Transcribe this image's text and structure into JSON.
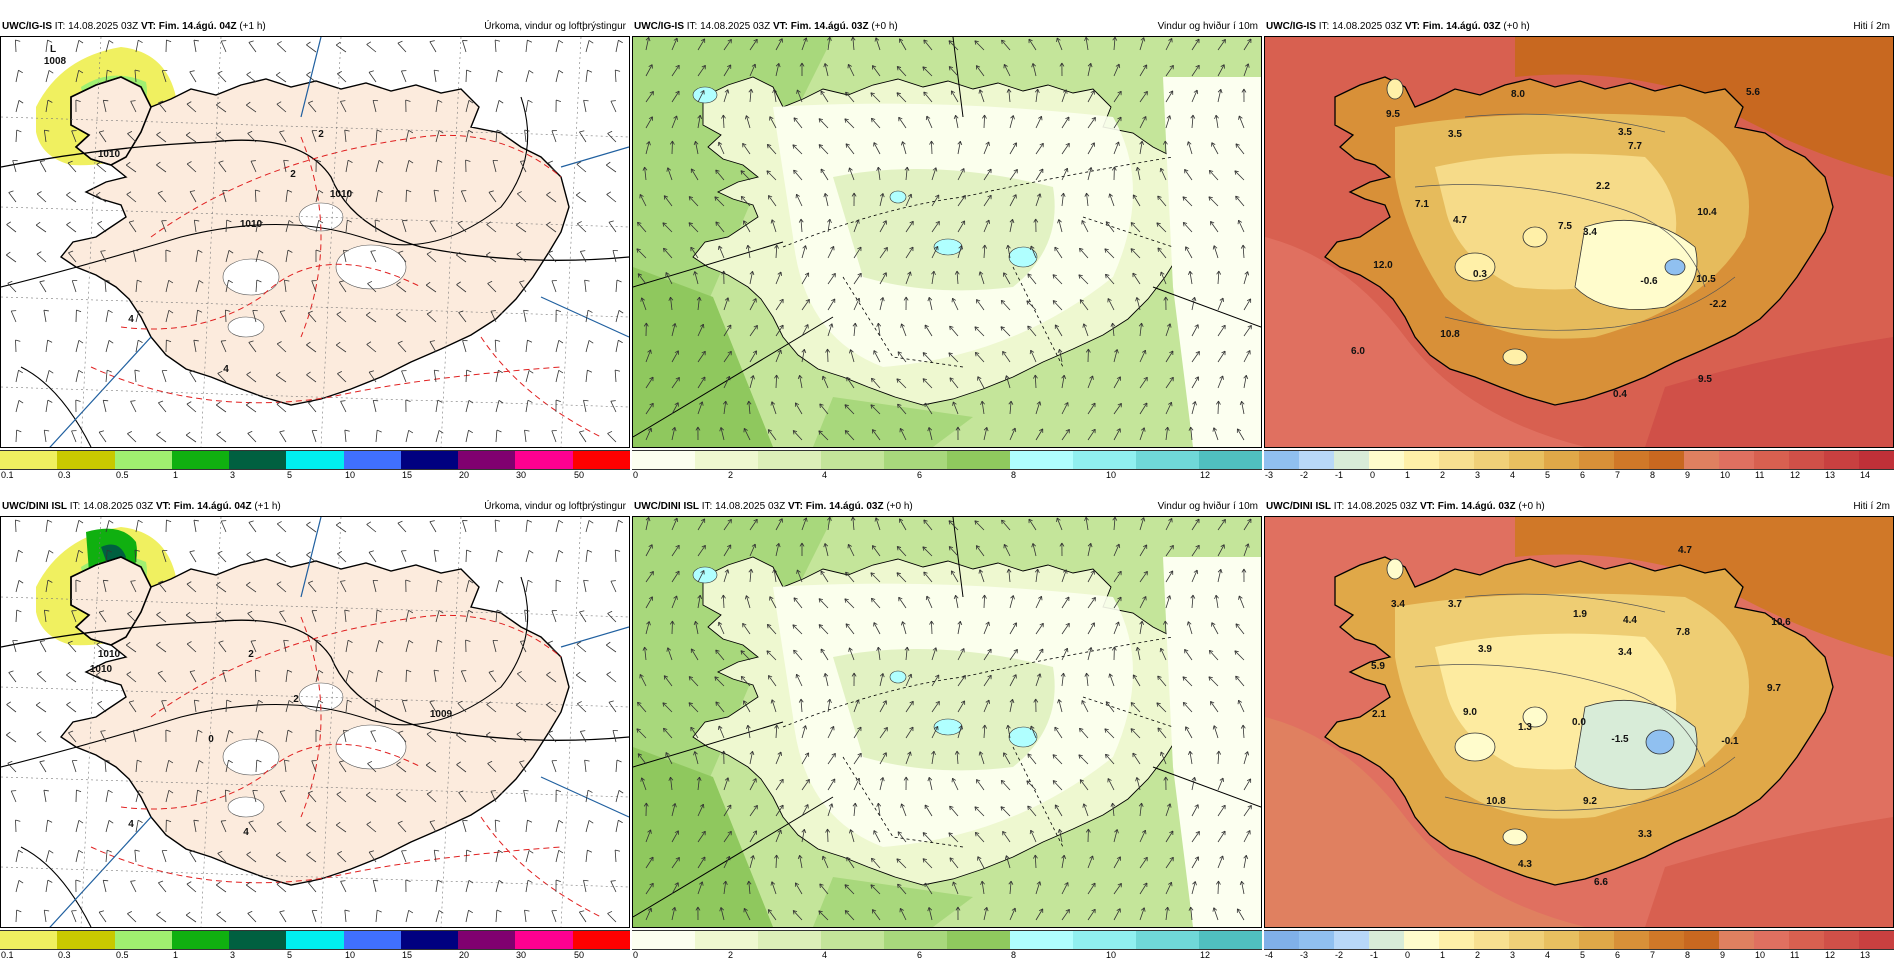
{
  "panels": [
    {
      "id": "igis-precip",
      "model": "UWC/IG-IS",
      "it_label": "IT:",
      "it": "14.08.2025 03Z",
      "vt_label": "VT:",
      "vt": "Fim. 14.ágú. 04Z",
      "lead": "(+1 h)",
      "title": "Úrkoma, vindur og loftþrýstingur",
      "kind": "precip",
      "colorbar": {
        "colors": [
          "#f0f060",
          "#c8c800",
          "#a0f070",
          "#10b010",
          "#006040",
          "#00f0f0",
          "#4070ff",
          "#000080",
          "#800070",
          "#ff0090",
          "#ff0000"
        ],
        "labels": [
          "0.1",
          "0.3",
          "0.5",
          "1",
          "3",
          "5",
          "10",
          "15",
          "20",
          "30",
          "50"
        ]
      },
      "labels": [
        "L",
        "1008",
        "1010",
        "1010",
        "1010",
        "2",
        "2",
        "4",
        "4"
      ]
    },
    {
      "id": "igis-wind",
      "model": "UWC/IG-IS",
      "it_label": "IT:",
      "it": "14.08.2025 03Z",
      "vt_label": "VT:",
      "vt": "Fim. 14.ágú. 03Z",
      "lead": "(+0 h)",
      "title": "Vindur og hviður í 10m",
      "kind": "wind",
      "colorbar": {
        "colors": [
          "#fcfff0",
          "#eef8d0",
          "#dcefb8",
          "#c4e59a",
          "#a8d87c",
          "#8fc85e",
          "#b0ffff",
          "#90f0f0",
          "#70d8d8",
          "#50c0c0"
        ],
        "labels": [
          "0",
          "2",
          "4",
          "6",
          "8",
          "10",
          "12"
        ]
      },
      "labels": []
    },
    {
      "id": "igis-temp",
      "model": "UWC/IG-IS",
      "it_label": "IT:",
      "it": "14.08.2025 03Z",
      "vt_label": "VT:",
      "vt": "Fim. 14.ágú. 03Z",
      "lead": "(+0 h)",
      "title": "Hiti í 2m",
      "kind": "temp",
      "colorbar": {
        "colors": [
          "#90c0f0",
          "#b8d8f8",
          "#d8ecd8",
          "#fffccc",
          "#fff0a8",
          "#f8e090",
          "#f0d078",
          "#e8c060",
          "#e0a848",
          "#d89038",
          "#d07828",
          "#c86820",
          "#e08060",
          "#e07060",
          "#d86050",
          "#d05048",
          "#c84040",
          "#c03038"
        ],
        "labels": [
          "-3",
          "-2",
          "-1",
          "0",
          "1",
          "2",
          "3",
          "4",
          "5",
          "6",
          "7",
          "8",
          "9",
          "10",
          "11",
          "12",
          "13",
          "14"
        ]
      },
      "labels": [
        "8.0",
        "5.6",
        "9.5",
        "3.5",
        "3.5",
        "7.7",
        "2.2",
        "7.1",
        "10.4",
        "4.7",
        "3.4",
        "7.5",
        "12.0",
        "0.3",
        "-0.6",
        "10.5",
        "-2.2",
        "10.8",
        "6.0",
        "0.4",
        "9.5"
      ]
    },
    {
      "id": "dini-precip",
      "model": "UWC/DINI ISL",
      "it_label": "IT:",
      "it": "14.08.2025 03Z",
      "vt_label": "VT:",
      "vt": "Fim. 14.ágú. 04Z",
      "lead": "(+1 h)",
      "title": "Úrkoma, vindur og loftþrýstingur",
      "kind": "precip",
      "colorbar": {
        "colors": [
          "#f0f060",
          "#c8c800",
          "#a0f070",
          "#10b010",
          "#006040",
          "#00f0f0",
          "#4070ff",
          "#000080",
          "#800070",
          "#ff0090",
          "#ff0000"
        ],
        "labels": [
          "0.1",
          "0.3",
          "0.5",
          "1",
          "3",
          "5",
          "10",
          "15",
          "20",
          "30",
          "50"
        ]
      },
      "labels": [
        "1010",
        "1010",
        "1009",
        "0",
        "2",
        "2",
        "4",
        "4"
      ]
    },
    {
      "id": "dini-wind",
      "model": "UWC/DINI ISL",
      "it_label": "IT:",
      "it": "14.08.2025 03Z",
      "vt_label": "VT:",
      "vt": "Fim. 14.ágú. 03Z",
      "lead": "(+0 h)",
      "title": "Vindur og hviður í 10m",
      "kind": "wind",
      "colorbar": {
        "colors": [
          "#fcfff0",
          "#eef8d0",
          "#dcefb8",
          "#c4e59a",
          "#a8d87c",
          "#8fc85e",
          "#b0ffff",
          "#90f0f0",
          "#70d8d8",
          "#50c0c0"
        ],
        "labels": [
          "0",
          "2",
          "4",
          "6",
          "8",
          "10",
          "12"
        ]
      },
      "labels": []
    },
    {
      "id": "dini-temp",
      "model": "UWC/DINI ISL",
      "it_label": "IT:",
      "it": "14.08.2025 03Z",
      "vt_label": "VT:",
      "vt": "Fim. 14.ágú. 03Z",
      "lead": "(+0 h)",
      "title": "Hiti í 2m",
      "kind": "temp",
      "colorbar": {
        "colors": [
          "#80b0e8",
          "#90c0f0",
          "#b8d8f8",
          "#d8ecd8",
          "#fffccc",
          "#fff0a8",
          "#f8e090",
          "#f0d078",
          "#e8c060",
          "#e0a848",
          "#d89038",
          "#d07828",
          "#c86820",
          "#e08060",
          "#e07060",
          "#d86050",
          "#d05048",
          "#c84040"
        ],
        "labels": [
          "-4",
          "-3",
          "-2",
          "-1",
          "0",
          "1",
          "2",
          "3",
          "4",
          "5",
          "6",
          "7",
          "8",
          "9",
          "10",
          "11",
          "12",
          "13"
        ]
      },
      "labels": [
        "4.7",
        "3.4",
        "3.7",
        "1.9",
        "4.4",
        "10.6",
        "7.8",
        "5.9",
        "3.9",
        "3.4",
        "9.7",
        "2.1",
        "9.0",
        "1.3",
        "0.0",
        "-1.5",
        "-0.1",
        "10.8",
        "9.2",
        "3.3",
        "4.3",
        "6.6"
      ]
    }
  ]
}
